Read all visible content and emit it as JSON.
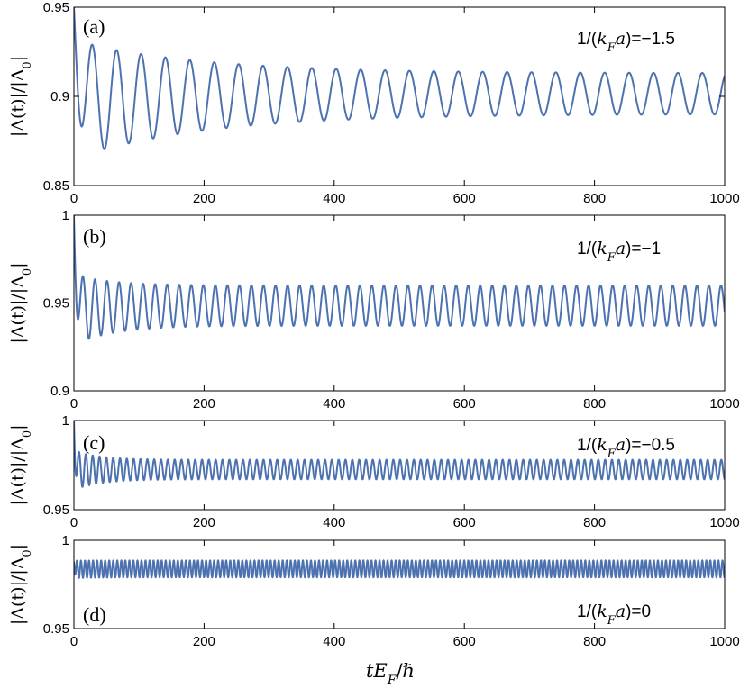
{
  "chart_data": [
    {
      "type": "line",
      "panel_label": "(a)",
      "annotation": "1/(k_Fa)=−1.5",
      "ylabel": "|Δ(t)|/|Δ0|",
      "xlim": [
        0,
        1000
      ],
      "ylim": [
        0.85,
        0.95
      ],
      "xticks": [
        "0",
        "200",
        "400",
        "600",
        "800",
        "1000"
      ],
      "yticks": [
        "0.85",
        "0.9",
        "0.95"
      ],
      "series": [
        {
          "color": "#4c72b0",
          "signal": {
            "start": 0.95,
            "center_initial": 0.898,
            "center_final": 0.9015,
            "amplitude_initial": 0.033,
            "amplitude_final": 0.0115,
            "decay_time": 200,
            "period": 37.5
          }
        }
      ]
    },
    {
      "type": "line",
      "panel_label": "(b)",
      "annotation": "1/(k_Fa)=−1",
      "ylabel": "|Δ(t)|/|Δ0|",
      "xlim": [
        0,
        1000
      ],
      "ylim": [
        0.9,
        1.0
      ],
      "xticks": [
        "0",
        "200",
        "400",
        "600",
        "800",
        "1000"
      ],
      "yticks": [
        "0.9",
        "0.95",
        "1"
      ],
      "series": [
        {
          "color": "#4c72b0",
          "signal": {
            "start": 1.0,
            "center_initial": 0.946,
            "center_final": 0.9485,
            "amplitude_initial": 0.02,
            "amplitude_final": 0.0115,
            "decay_time": 60,
            "period": 18.5
          }
        }
      ]
    },
    {
      "type": "line",
      "panel_label": "(c)",
      "annotation": "1/(k_Fa)=−0.5",
      "ylabel": "|Δ(t)|/|Δ0|",
      "xlim": [
        0,
        1000
      ],
      "ylim": [
        0.95,
        1.0
      ],
      "xticks": [
        "0",
        "200",
        "400",
        "600",
        "800",
        "1000"
      ],
      "yticks": [
        "0.95",
        "1"
      ],
      "series": [
        {
          "color": "#4c72b0",
          "signal": {
            "start": 1.0,
            "center_initial": 0.972,
            "center_final": 0.9725,
            "amplitude_initial": 0.011,
            "amplitude_final": 0.0055,
            "decay_time": 40,
            "period": 10.5
          }
        }
      ]
    },
    {
      "type": "line",
      "panel_label": "(d)",
      "annotation": "1/(k_Fa)=0",
      "ylabel": "|Δ(t)|/|Δ0|",
      "xlabel": "tE_F/ℏ",
      "xlim": [
        0,
        1000
      ],
      "ylim": [
        0.95,
        1.0
      ],
      "xticks": [
        "0",
        "200",
        "400",
        "600",
        "800",
        "1000"
      ],
      "yticks": [
        "0.95",
        "1"
      ],
      "series": [
        {
          "color": "#4c72b0",
          "signal": {
            "start": 0.988,
            "center_initial": 0.9835,
            "center_final": 0.9838,
            "amplitude_initial": 0.005,
            "amplitude_final": 0.0048,
            "decay_time": 30,
            "period": 6.2
          }
        }
      ]
    }
  ]
}
